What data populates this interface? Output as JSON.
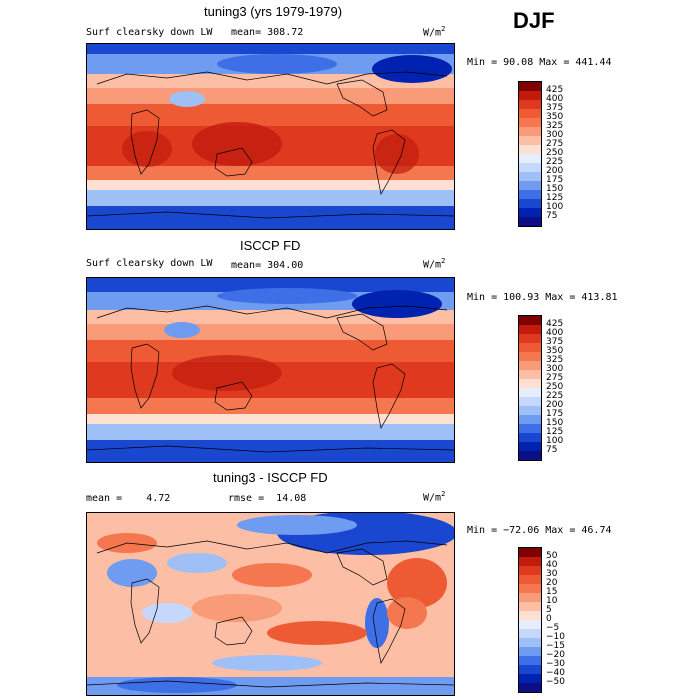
{
  "season": "DJF",
  "panels": [
    {
      "title": "tuning3 (yrs 1979-1979)",
      "left_label": "Surf clearsky down LW",
      "mean_label": "mean=",
      "mean_value": "308.72",
      "units": "W/m",
      "units_exp": "2",
      "minmax": "Min =  90.08 Max = 441.44",
      "colorbar_labels": [
        "425",
        "400",
        "375",
        "350",
        "325",
        "300",
        "275",
        "250",
        "225",
        "200",
        "175",
        "150",
        "125",
        "100",
        "75"
      ],
      "colors": [
        "#7f0000",
        "#c11b0e",
        "#df3a1f",
        "#ee5a33",
        "#f4774f",
        "#f99a78",
        "#fcbea5",
        "#fde0d2",
        "#e6eefc",
        "#c5d8fb",
        "#9fc0f7",
        "#6f9bf0",
        "#3f6fe6",
        "#1a47cf",
        "#0022b0",
        "#0b0e84"
      ]
    },
    {
      "title": "ISCCP FD",
      "left_label": "Surf clearsky down LW",
      "mean_label": "mean=",
      "mean_value": "304.00",
      "units": "W/m",
      "units_exp": "2",
      "minmax": "Min = 100.93 Max = 413.81",
      "colorbar_labels": [
        "425",
        "400",
        "375",
        "350",
        "325",
        "300",
        "275",
        "250",
        "225",
        "200",
        "175",
        "150",
        "125",
        "100",
        "75"
      ],
      "colors": [
        "#7f0000",
        "#c11b0e",
        "#df3a1f",
        "#ee5a33",
        "#f4774f",
        "#f99a78",
        "#fcbea5",
        "#fde0d2",
        "#e6eefc",
        "#c5d8fb",
        "#9fc0f7",
        "#6f9bf0",
        "#3f6fe6",
        "#1a47cf",
        "#0022b0",
        "#0b0e84"
      ]
    },
    {
      "title": "tuning3 - ISCCP FD",
      "left_label": "mean =",
      "mean_label": "",
      "mean_value": "4.72",
      "rmse_label": "rmse =",
      "rmse_value": "14.08",
      "units": "W/m",
      "units_exp": "2",
      "minmax": "Min = −72.06 Max =  46.74",
      "colorbar_labels": [
        "50",
        "40",
        "30",
        "20",
        "15",
        "10",
        "5",
        "0",
        "−5",
        "−10",
        "−15",
        "−20",
        "−30",
        "−40",
        "−50"
      ],
      "colors": [
        "#7f0000",
        "#c11b0e",
        "#df3a1f",
        "#ee5a33",
        "#f4774f",
        "#f99a78",
        "#fcbea5",
        "#fde0d2",
        "#e6eefc",
        "#c5d8fb",
        "#9fc0f7",
        "#6f9bf0",
        "#3f6fe6",
        "#1a47cf",
        "#0022b0",
        "#0b0e84"
      ]
    }
  ],
  "chart_data": [
    {
      "type": "heatmap",
      "title": "tuning3 (yrs 1979-1979)",
      "variable": "Surf clearsky down LW",
      "units": "W/m2",
      "mean": 308.72,
      "min": 90.08,
      "max": 441.44,
      "levels": [
        75,
        100,
        125,
        150,
        175,
        200,
        225,
        250,
        275,
        300,
        325,
        350,
        375,
        400,
        425
      ]
    },
    {
      "type": "heatmap",
      "title": "ISCCP FD",
      "variable": "Surf clearsky down LW",
      "units": "W/m2",
      "mean": 304.0,
      "min": 100.93,
      "max": 413.81,
      "levels": [
        75,
        100,
        125,
        150,
        175,
        200,
        225,
        250,
        275,
        300,
        325,
        350,
        375,
        400,
        425
      ]
    },
    {
      "type": "heatmap",
      "title": "tuning3 - ISCCP FD",
      "units": "W/m2",
      "mean": 4.72,
      "rmse": 14.08,
      "min": -72.06,
      "max": 46.74,
      "levels": [
        -50,
        -40,
        -30,
        -20,
        -15,
        -10,
        -5,
        0,
        5,
        10,
        15,
        20,
        30,
        40,
        50
      ]
    }
  ]
}
